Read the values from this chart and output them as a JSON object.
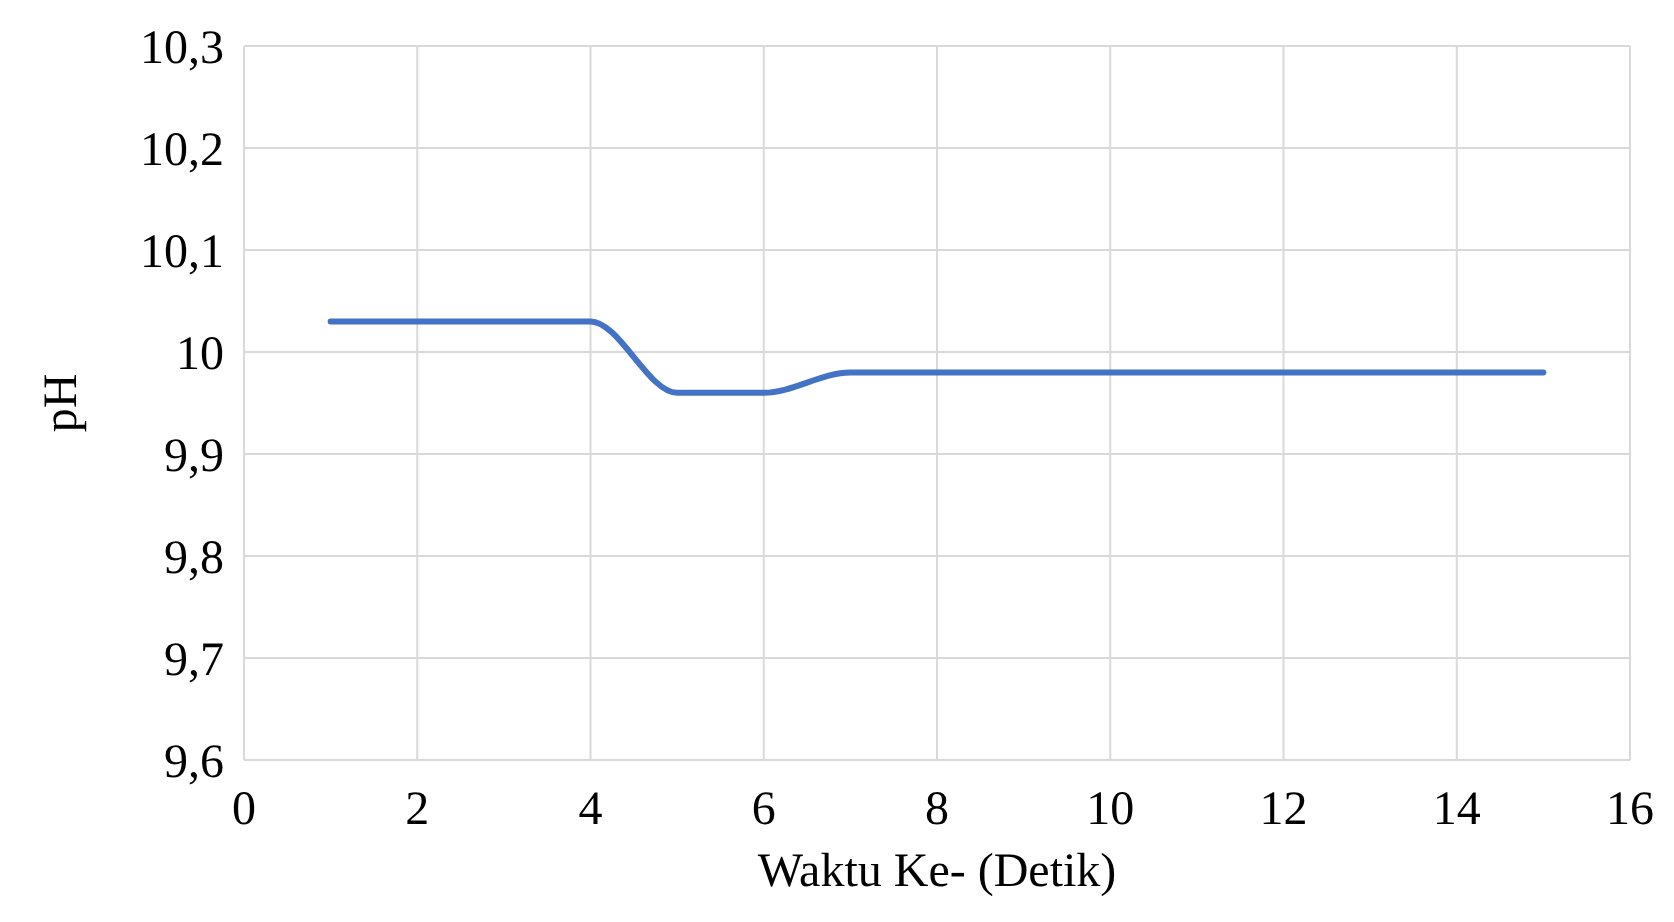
{
  "chart_data": {
    "type": "line",
    "xlabel": "Waktu Ke- (Detik)",
    "ylabel": "pH",
    "x": [
      1,
      2,
      3,
      4,
      5,
      6,
      7,
      8,
      9,
      10,
      11,
      12,
      13,
      14,
      15
    ],
    "series": [
      {
        "color": "#4472c4",
        "values": [
          10.03,
          10.03,
          10.03,
          10.03,
          9.96,
          9.96,
          9.98,
          9.98,
          9.98,
          9.98,
          9.98,
          9.98,
          9.98,
          9.98,
          9.98
        ]
      }
    ],
    "xlim": [
      0,
      16
    ],
    "xticks": [
      0,
      2,
      4,
      6,
      8,
      10,
      12,
      14,
      16
    ],
    "ylim": [
      9.6,
      10.3
    ],
    "yticks": [
      {
        "value": 9.6,
        "label": "9,6"
      },
      {
        "value": 9.7,
        "label": "9,7"
      },
      {
        "value": 9.8,
        "label": "9,8"
      },
      {
        "value": 9.9,
        "label": "9,9"
      },
      {
        "value": 10,
        "label": "10"
      },
      {
        "value": 10.1,
        "label": "10,1"
      },
      {
        "value": 10.2,
        "label": "10,2"
      },
      {
        "value": 10.3,
        "label": "10,3"
      }
    ],
    "grid": true,
    "marker": "none",
    "line_style": "solid"
  }
}
